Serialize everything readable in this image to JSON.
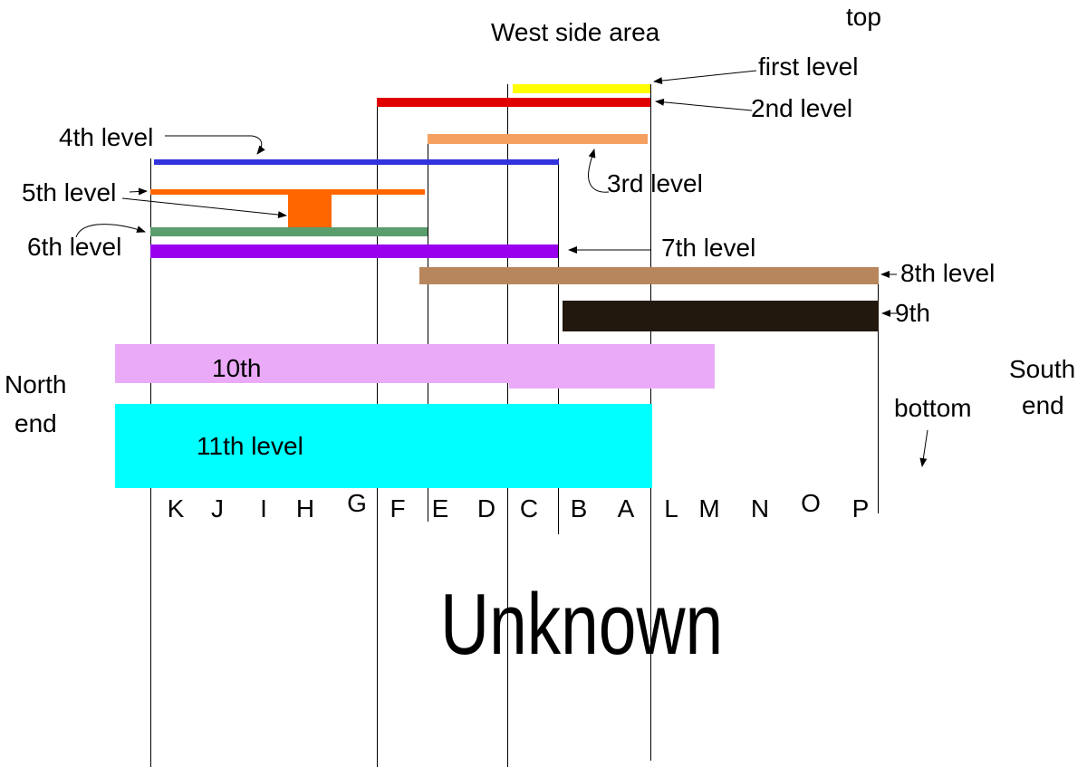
{
  "title": "West side area",
  "top_label": "top",
  "bottom_label": "bottom",
  "north_label_1": "North",
  "north_label_2": "end",
  "south_label_1": "South",
  "south_label_2": "end",
  "unknown_label": "Unknown",
  "levels": {
    "first": {
      "label": "first level",
      "color": "#ffff00"
    },
    "second": {
      "label": "2nd level",
      "color": "#e00000"
    },
    "third": {
      "label": "3rd level",
      "color": "#f4a060"
    },
    "fourth": {
      "label": "4th level",
      "color": "#3333dd"
    },
    "fifth": {
      "label": "5th level",
      "color": "#ff6600"
    },
    "sixth": {
      "label": "6th level",
      "color": "#5a9e6e"
    },
    "seventh": {
      "label": "7th level",
      "color": "#9900ee"
    },
    "eighth": {
      "label": "8th level",
      "color": "#b8865c"
    },
    "ninth": {
      "label": "9th",
      "color": "#23180e"
    },
    "tenth": {
      "label": "10th",
      "color": "#eaaaf8"
    },
    "eleventh": {
      "label": "11th level",
      "color": "#00ffff"
    }
  },
  "columns": [
    "K",
    "J",
    "I",
    "H",
    "G",
    "F",
    "E",
    "D",
    "C",
    "B",
    "A",
    "L",
    "M",
    "N",
    "O",
    "P"
  ]
}
